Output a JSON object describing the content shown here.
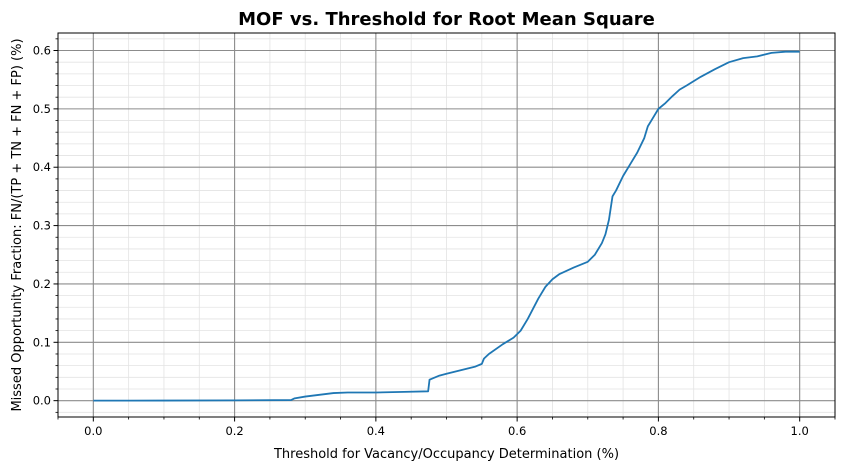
{
  "chart_data": {
    "type": "line",
    "title": "MOF vs. Threshold for Root Mean Square",
    "xlabel": "Threshold for Vacancy/Occupancy Determination (%)",
    "ylabel": "Missed Opportunity Fraction: FN/(TP + TN + FN + FP) (%)",
    "xlim": [
      -0.05,
      1.05
    ],
    "ylim": [
      -0.028,
      0.63
    ],
    "x_ticks": [
      0.0,
      0.2,
      0.4,
      0.6,
      0.8,
      1.0
    ],
    "x_tick_labels": [
      "0.0",
      "0.2",
      "0.4",
      "0.6",
      "0.8",
      "1.0"
    ],
    "y_ticks": [
      0.0,
      0.1,
      0.2,
      0.3,
      0.4,
      0.5,
      0.6
    ],
    "y_tick_labels": [
      "0.0",
      "0.1",
      "0.2",
      "0.3",
      "0.4",
      "0.5",
      "0.6"
    ],
    "grid": "major and minor",
    "line_color": "#1f77b4",
    "series": [
      {
        "x": [
          0.0,
          0.1,
          0.2,
          0.28,
          0.285,
          0.3,
          0.32,
          0.34,
          0.36,
          0.4,
          0.44,
          0.474,
          0.476,
          0.49,
          0.5,
          0.52,
          0.54,
          0.55,
          0.553,
          0.56,
          0.58,
          0.595,
          0.605,
          0.615,
          0.63,
          0.64,
          0.65,
          0.66,
          0.68,
          0.69,
          0.7,
          0.71,
          0.72,
          0.725,
          0.73,
          0.735,
          0.74,
          0.75,
          0.76,
          0.77,
          0.78,
          0.785,
          0.79,
          0.8,
          0.81,
          0.82,
          0.83,
          0.84,
          0.86,
          0.88,
          0.9,
          0.92,
          0.94,
          0.96,
          0.98,
          1.0
        ],
        "y": [
          0.0,
          0.0002,
          0.0005,
          0.001,
          0.004,
          0.007,
          0.01,
          0.013,
          0.014,
          0.014,
          0.015,
          0.016,
          0.036,
          0.043,
          0.046,
          0.052,
          0.058,
          0.063,
          0.072,
          0.08,
          0.097,
          0.108,
          0.12,
          0.14,
          0.175,
          0.195,
          0.208,
          0.217,
          0.228,
          0.233,
          0.238,
          0.25,
          0.27,
          0.285,
          0.31,
          0.35,
          0.36,
          0.385,
          0.405,
          0.425,
          0.45,
          0.47,
          0.48,
          0.5,
          0.51,
          0.522,
          0.533,
          0.54,
          0.555,
          0.568,
          0.58,
          0.587,
          0.59,
          0.596,
          0.598,
          0.598
        ]
      }
    ]
  }
}
